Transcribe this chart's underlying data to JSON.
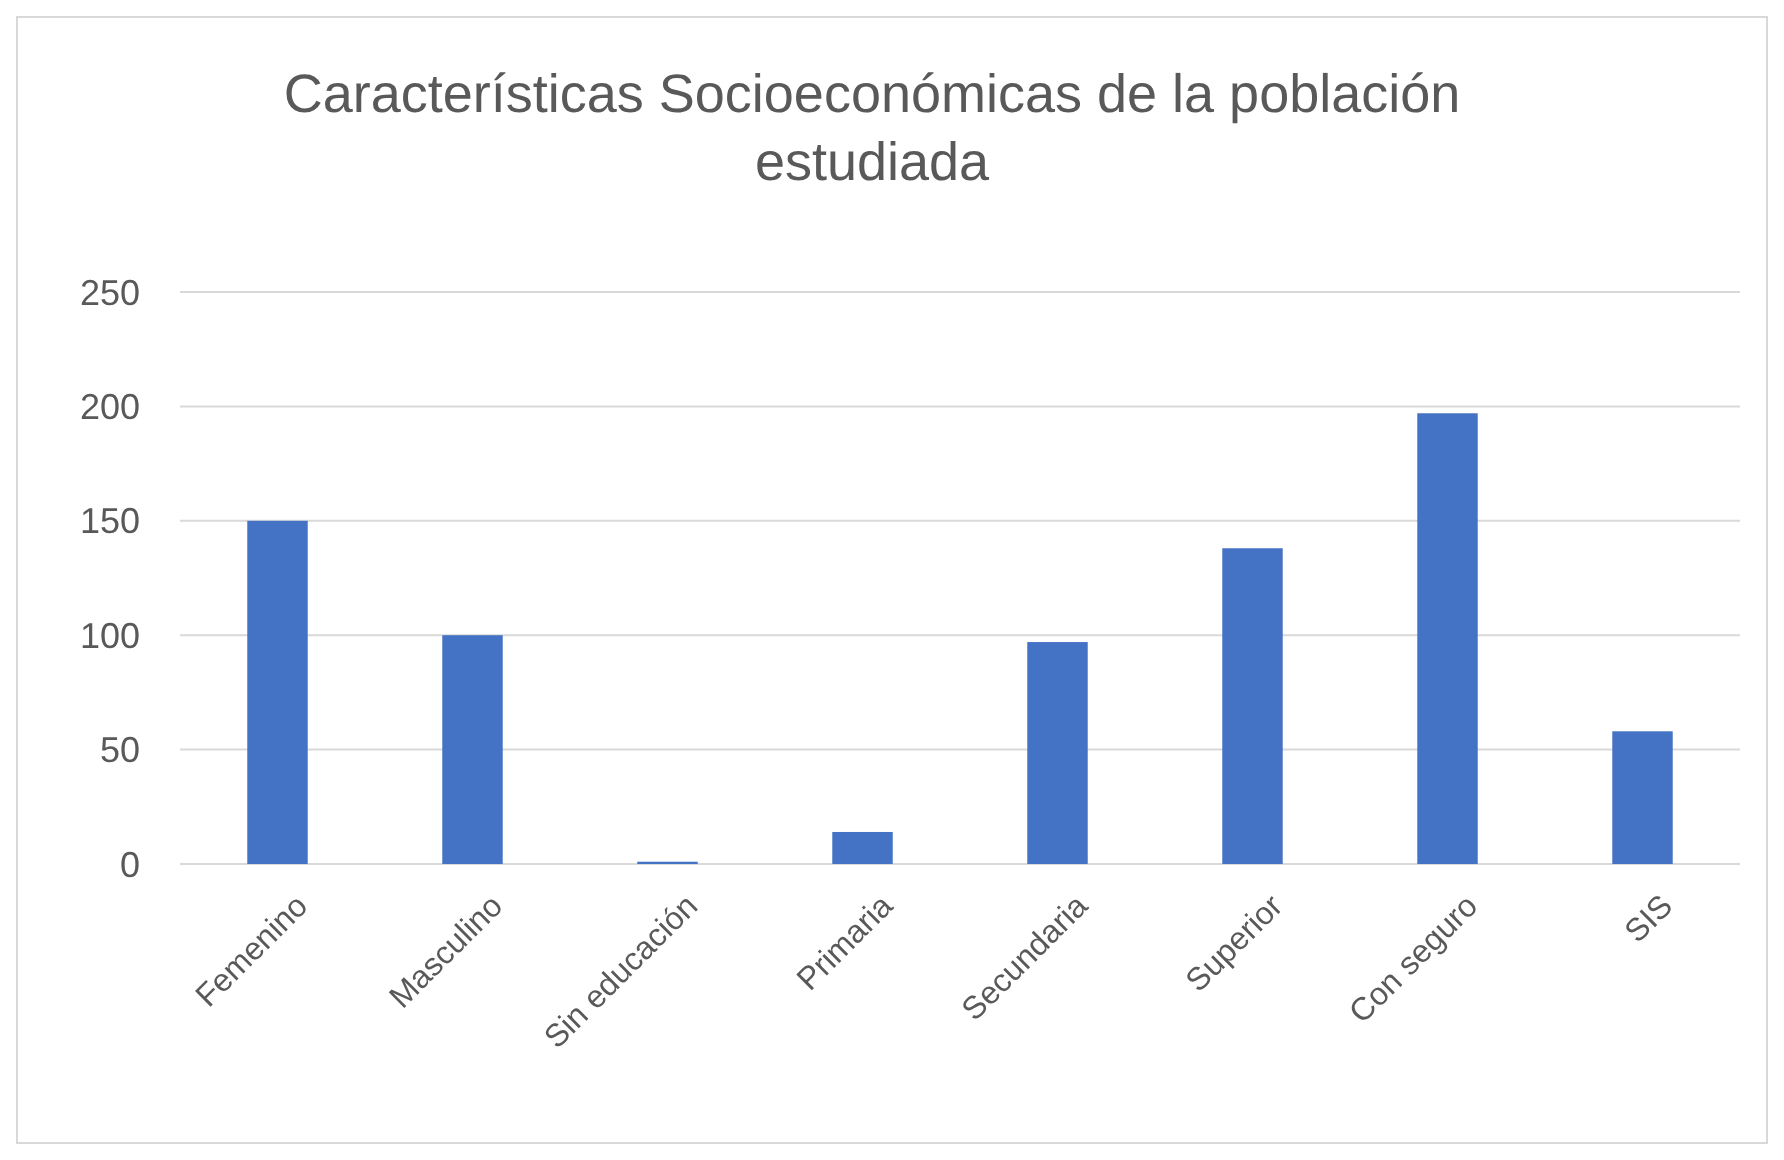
{
  "chart_data": {
    "type": "bar",
    "title": "Características Socioeconómicas de la población estudiada",
    "categories": [
      "Femenino",
      "Masculino",
      "Sin educación",
      "Primaria",
      "Secundaria",
      "Superior",
      "Con seguro",
      "SIS"
    ],
    "values": [
      150,
      100,
      1,
      14,
      97,
      138,
      197,
      58
    ],
    "color": "#4472c4",
    "ylim": [
      0,
      250
    ],
    "yticks": [
      0,
      50,
      100,
      150,
      200,
      250
    ],
    "grid": "y"
  }
}
